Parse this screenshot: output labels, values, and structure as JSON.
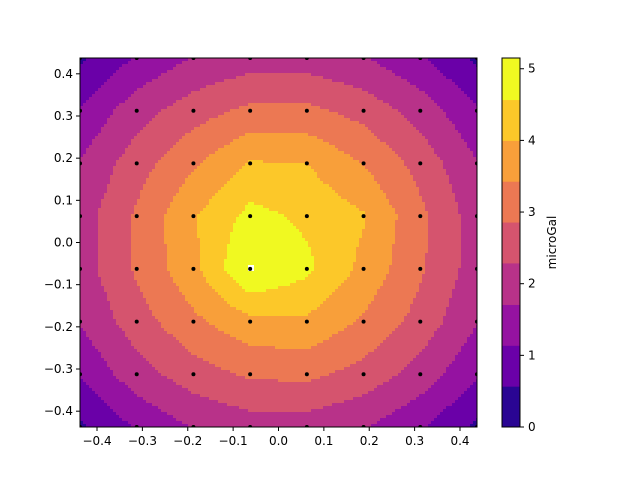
{
  "chart_data": {
    "type": "contourf",
    "title": "",
    "xlabel": "",
    "ylabel": "",
    "xlim": [
      -0.4375,
      0.4375
    ],
    "ylim": [
      -0.4375,
      0.4375
    ],
    "x_ticks": [
      -0.4,
      -0.3,
      -0.2,
      -0.1,
      0.0,
      0.1,
      0.2,
      0.3,
      0.4
    ],
    "x_tick_labels": [
      "−0.4",
      "−0.3",
      "−0.2",
      "−0.1",
      "0.0",
      "0.1",
      "0.2",
      "0.3",
      "0.4"
    ],
    "y_ticks": [
      -0.4,
      -0.3,
      -0.2,
      -0.1,
      0.0,
      0.1,
      0.2,
      0.3,
      0.4
    ],
    "y_tick_labels": [
      "−0.4",
      "−0.3",
      "−0.2",
      "−0.1",
      "0.0",
      "0.1",
      "0.2",
      "0.3",
      "0.4"
    ],
    "colormap": "plasma",
    "grid": false,
    "colorbar": {
      "label": "microGal",
      "range": [
        0,
        5.15
      ],
      "ticks": [
        0,
        1,
        2,
        3,
        4,
        5
      ],
      "tick_labels": [
        "0",
        "1",
        "2",
        "3",
        "4",
        "5"
      ]
    },
    "levels": [
      0,
      0.57,
      1.14,
      1.71,
      2.29,
      2.86,
      3.43,
      4.0,
      4.57,
      5.15
    ],
    "level_colors": [
      "#2a0593",
      "#6a00a8",
      "#9512a1",
      "#b83289",
      "#d5546e",
      "#ec7853",
      "#f89f3a",
      "#fcc829",
      "#f0f921"
    ],
    "grid_points_x": [
      -0.4375,
      -0.3125,
      -0.1875,
      -0.0625,
      0.0625,
      0.1875,
      0.3125,
      0.4375
    ],
    "grid_points_y": [
      -0.4375,
      -0.3125,
      -0.1875,
      -0.0625,
      0.0625,
      0.1875,
      0.3125,
      0.4375
    ],
    "z_grid": [
      [
        0.45,
        1.2,
        1.75,
        2.0,
        2.0,
        1.75,
        1.2,
        0.45
      ],
      [
        1.2,
        2.05,
        2.6,
        2.95,
        3.0,
        2.65,
        2.05,
        1.2
      ],
      [
        1.75,
        2.6,
        3.3,
        3.85,
        3.9,
        3.35,
        2.65,
        1.75
      ],
      [
        2.0,
        2.95,
        3.85,
        5.2,
        4.7,
        3.85,
        2.95,
        2.0
      ],
      [
        2.0,
        2.95,
        3.95,
        4.75,
        4.45,
        4.05,
        3.0,
        2.0
      ],
      [
        1.75,
        2.6,
        3.35,
        4.05,
        4.0,
        3.4,
        2.65,
        1.75
      ],
      [
        1.2,
        2.05,
        2.6,
        3.0,
        3.0,
        2.65,
        2.05,
        1.2
      ],
      [
        0.45,
        1.2,
        1.75,
        2.0,
        2.0,
        1.75,
        1.2,
        0.45
      ]
    ]
  }
}
